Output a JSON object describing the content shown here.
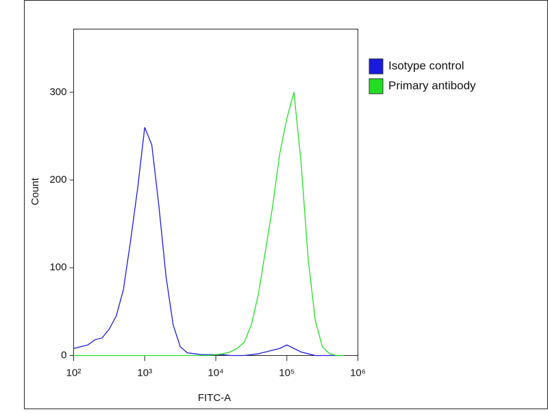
{
  "chart_data": {
    "type": "line",
    "xlabel": "FITC-A",
    "ylabel": "Count",
    "xscale": "log",
    "x": [
      100,
      126,
      158,
      200,
      251,
      316,
      398,
      501,
      631,
      794,
      1000,
      1259,
      1585,
      1995,
      2512,
      3162,
      3981,
      5012,
      6310,
      7943,
      10000,
      12589,
      15849,
      19953,
      25119,
      31623,
      39811,
      50119,
      63096,
      79433,
      100000,
      125893,
      158489,
      199526,
      251189,
      316228,
      398107,
      501187,
      630957
    ],
    "series": [
      {
        "name": "Isotype control",
        "color": "#1a1adf",
        "values": [
          8,
          10,
          12,
          18,
          20,
          30,
          45,
          75,
          130,
          190,
          260,
          240,
          170,
          90,
          35,
          10,
          3,
          2,
          1,
          1,
          1,
          1,
          0,
          0,
          0,
          1,
          2,
          4,
          6,
          8,
          12,
          8,
          4,
          2,
          0,
          0,
          0,
          0,
          0
        ]
      },
      {
        "name": "Primary antibody",
        "color": "#22dd22",
        "values": [
          0,
          0,
          0,
          0,
          0,
          0,
          0,
          0,
          0,
          0,
          0,
          0,
          0,
          0,
          0,
          0,
          0,
          0,
          0,
          0,
          1,
          2,
          4,
          8,
          15,
          35,
          70,
          120,
          170,
          230,
          270,
          300,
          220,
          110,
          40,
          10,
          2,
          0,
          0
        ]
      }
    ],
    "xlim": [
      100,
      1000000
    ],
    "xticks": [
      {
        "value": 100,
        "label": "10²"
      },
      {
        "value": 1000,
        "label": "10³"
      },
      {
        "value": 10000,
        "label": "10⁴"
      },
      {
        "value": 100000,
        "label": "10⁵"
      },
      {
        "value": 1000000,
        "label": "10⁶"
      }
    ],
    "ylim": [
      0,
      372
    ],
    "yticks": [
      0,
      100,
      200,
      300
    ],
    "legend": "upper right"
  }
}
